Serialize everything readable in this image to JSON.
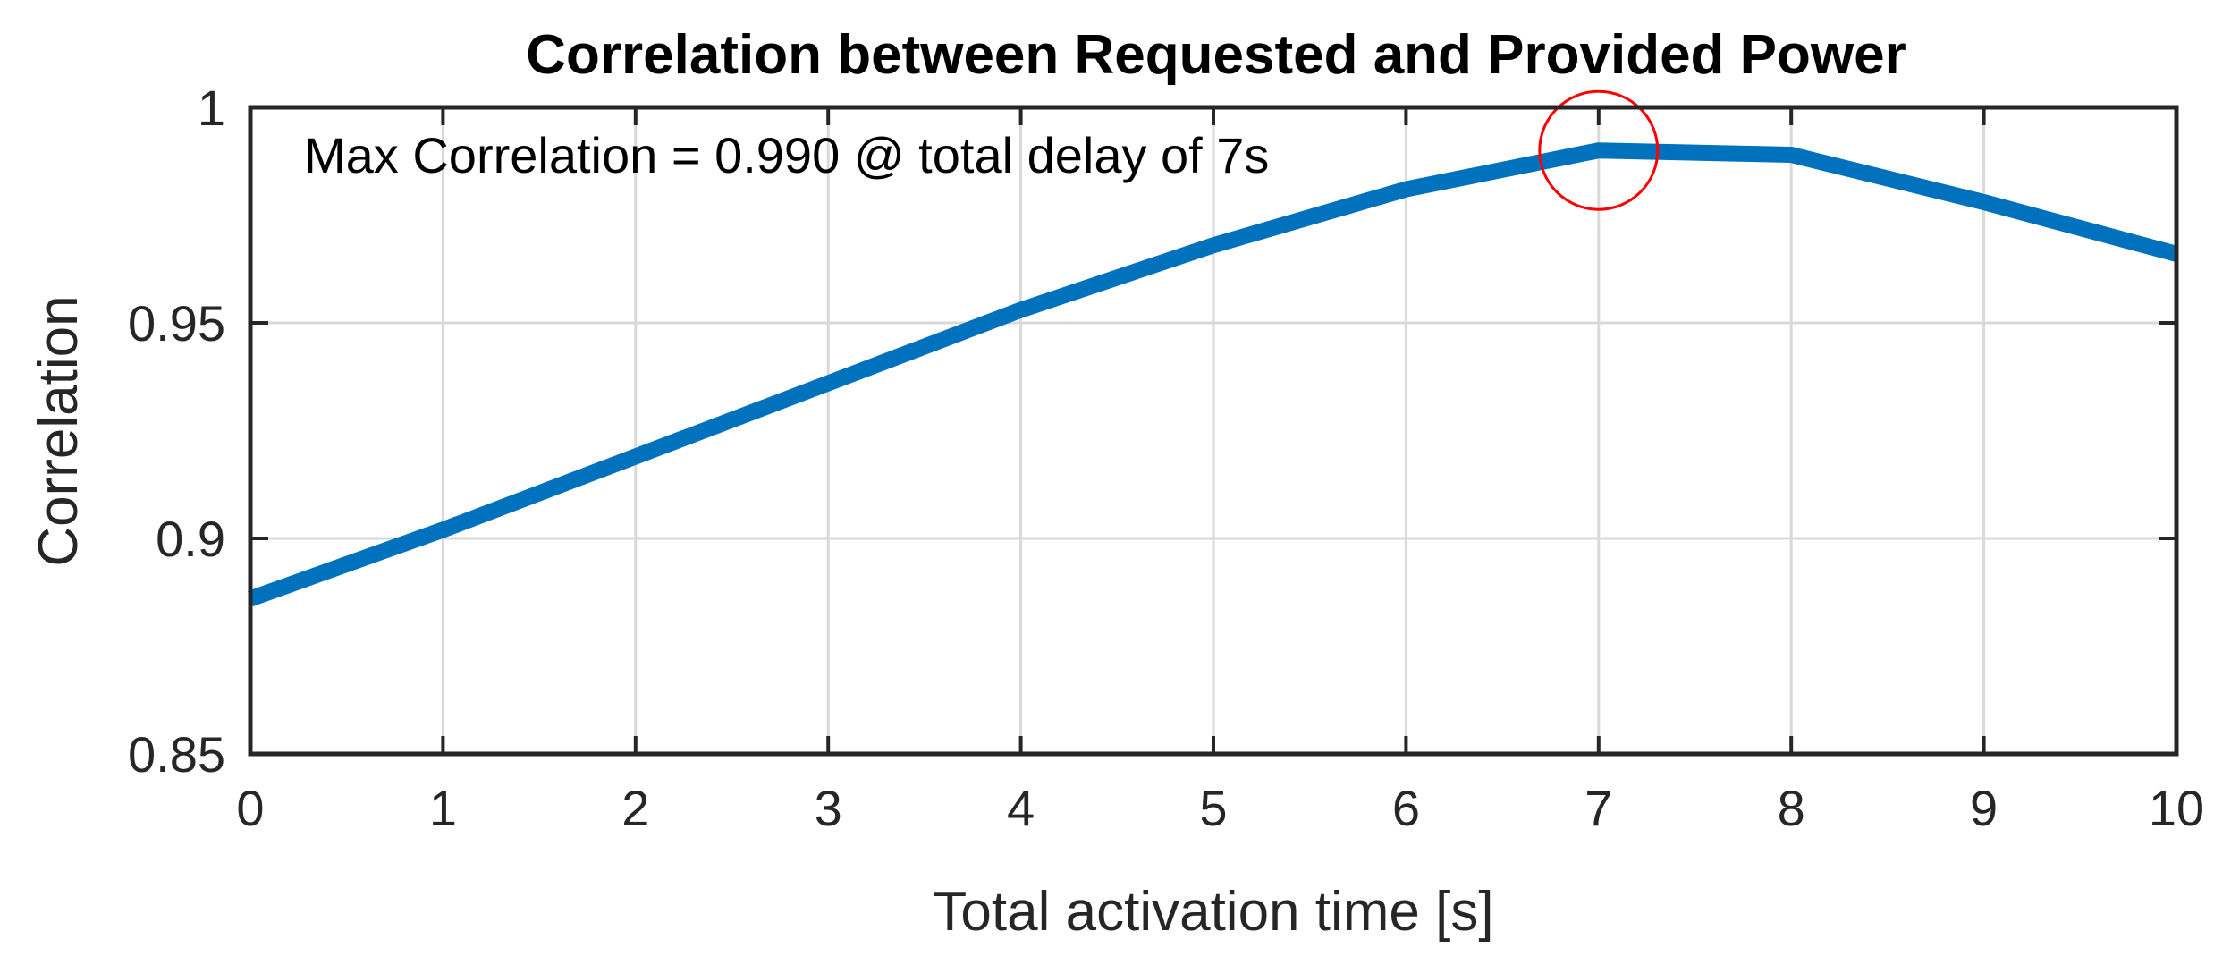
{
  "chart_data": {
    "type": "line",
    "title": "Correlation between Requested and Provided Power",
    "xlabel": "Total activation time [s]",
    "ylabel": "Correlation",
    "xlim": [
      0,
      10
    ],
    "ylim": [
      0.85,
      1
    ],
    "xticks": [
      0,
      1,
      2,
      3,
      4,
      5,
      6,
      7,
      8,
      9,
      10
    ],
    "xtick_labels": [
      "0",
      "1",
      "2",
      "3",
      "4",
      "5",
      "6",
      "7",
      "8",
      "9",
      "10"
    ],
    "yticks": [
      0.85,
      0.9,
      0.95,
      1
    ],
    "ytick_labels": [
      "0.85",
      "0.9",
      "0.95",
      "1"
    ],
    "grid": true,
    "legend": "none",
    "series": [
      {
        "color": "#0072BD",
        "x": [
          0,
          1,
          2,
          3,
          4,
          5,
          6,
          7,
          8,
          9,
          10
        ],
        "y": [
          0.886,
          0.902,
          0.919,
          0.936,
          0.953,
          0.968,
          0.981,
          0.99,
          0.989,
          0.978,
          0.966
        ]
      }
    ],
    "annotations": [
      {
        "text": "Max Correlation = 0.990 @ total delay of 7s"
      }
    ],
    "highlight": {
      "shape": "circle",
      "color": "#FF0000",
      "x": 7,
      "y": 0.99
    }
  }
}
